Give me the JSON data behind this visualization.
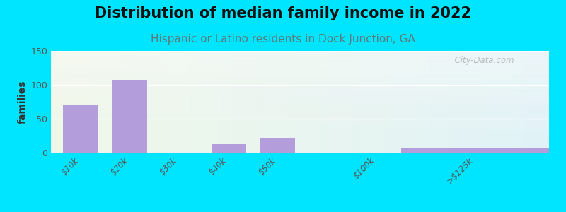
{
  "title": "Distribution of median family income in 2022",
  "subtitle": "Hispanic or Latino residents in Dock Junction, GA",
  "ylabel": "families",
  "categories": [
    "$10k",
    "$20k",
    "$30k",
    "$40k",
    "$50k",
    "$100k",
    ">$125k"
  ],
  "x_positions": [
    0,
    1,
    2,
    3,
    4,
    6,
    8
  ],
  "values": [
    70,
    107,
    0,
    13,
    22,
    0,
    7
  ],
  "bar_color": "#b39ddb",
  "bar_width": 0.7,
  "xlim": [
    -0.6,
    9.5
  ],
  "ylim": [
    0,
    150
  ],
  "yticks": [
    0,
    50,
    100,
    150
  ],
  "background_outer": "#00e5ff",
  "title_fontsize": 15,
  "subtitle_fontsize": 11,
  "subtitle_color": "#5c7a7a",
  "watermark": "  City-Data.com"
}
